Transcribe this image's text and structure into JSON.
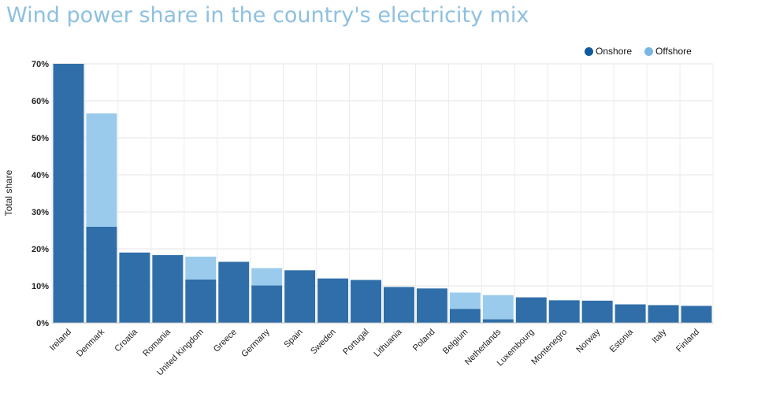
{
  "title": "Wind power share in the country's electricity mix",
  "colors": {
    "onshore": "#2f6ea8",
    "offshore": "#9acbed",
    "title": "#8ec0e0"
  },
  "chart_data": {
    "type": "bar",
    "stacked": true,
    "title": "Wind power share in the country's electricity mix",
    "xlabel": "",
    "ylabel": "Total share",
    "ylim": [
      0,
      70
    ],
    "yticks": [
      "0%",
      "10%",
      "20%",
      "30%",
      "40%",
      "50%",
      "60%",
      "70%"
    ],
    "grid": true,
    "legend_position": "top-right",
    "categories": [
      "Ireland",
      "Denmark",
      "Croatia",
      "Romania",
      "United Kingdom",
      "Greece",
      "Germany",
      "Spain",
      "Sweden",
      "Portugal",
      "Lithuania",
      "Poland",
      "Belgium",
      "Netherlands",
      "Luxembourg",
      "Montenegro",
      "Norway",
      "Estonia",
      "Italy",
      "Finland"
    ],
    "series": [
      {
        "name": "Onshore",
        "values": [
          70,
          26,
          19,
          18.3,
          11.7,
          16.5,
          10.1,
          14.2,
          12,
          11.6,
          9.7,
          9.3,
          3.8,
          1,
          6.9,
          6.1,
          6,
          5,
          4.8,
          4.6
        ]
      },
      {
        "name": "Offshore",
        "values": [
          0,
          30.6,
          0,
          0,
          6.2,
          0,
          4.7,
          0,
          0,
          0,
          0,
          0,
          4.4,
          6.5,
          0,
          0,
          0,
          0,
          0,
          0
        ]
      }
    ]
  }
}
